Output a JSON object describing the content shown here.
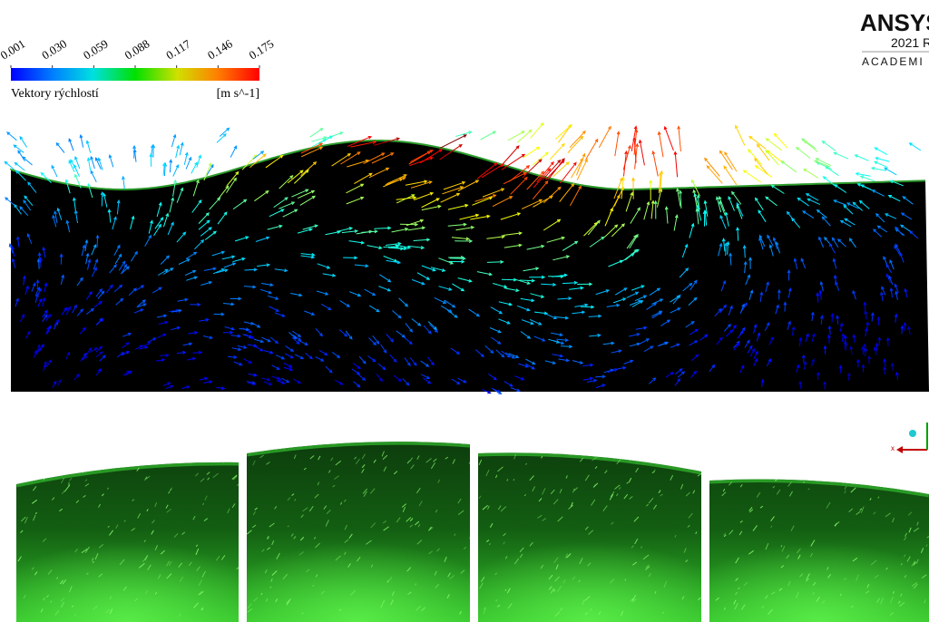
{
  "colorbar": {
    "ticks": [
      "0.001",
      "0.030",
      "0.059",
      "0.088",
      "0.117",
      "0.146",
      "0.175"
    ],
    "title": "Vektory rýchlostí",
    "unit": "[m s^-1]"
  },
  "logo": {
    "brand": "ANSYS",
    "release": "2021 R",
    "edition": "ACADEMI"
  },
  "triad": {
    "x_label": "x"
  }
}
